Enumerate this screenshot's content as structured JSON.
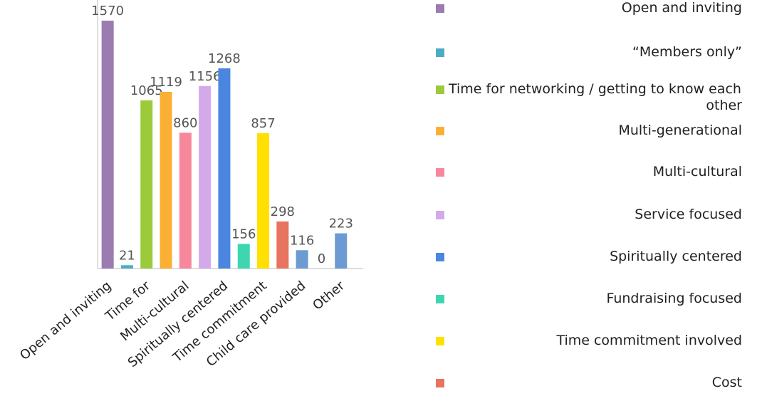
{
  "chart_data": {
    "type": "bar",
    "categories": [
      "Open and inviting",
      null,
      "Time for",
      null,
      "Multi-cultural",
      null,
      "Spiritually centered",
      null,
      "Time commitment",
      null,
      "Child care provided",
      null,
      "Other"
    ],
    "values": [
      1570,
      21,
      1065,
      1119,
      860,
      1156,
      1268,
      156,
      857,
      298,
      116,
      0,
      223
    ],
    "colors": [
      "#9b7bb0",
      "#4bacc6",
      "#9bcb3b",
      "#fbb034",
      "#f7879a",
      "#d4a9ea",
      "#4a86e0",
      "#3dd6b0",
      "#ffe000",
      "#e8735f",
      "#6b9bd2",
      "#a3c4e8",
      "#6b9bd2"
    ],
    "ylim": [
      0,
      1570
    ],
    "legend": [
      {
        "name": "Open and inviting",
        "color": "#9b7bb0"
      },
      {
        "name": "“Members only”",
        "color": "#4bacc6"
      },
      {
        "name": "Time for networking / getting to know each other",
        "color": "#9bcb3b"
      },
      {
        "name": "Multi-generational",
        "color": "#fbb034"
      },
      {
        "name": "Multi-cultural",
        "color": "#f7879a"
      },
      {
        "name": "Service focused",
        "color": "#d4a9ea"
      },
      {
        "name": "Spiritually centered",
        "color": "#4a86e0"
      },
      {
        "name": "Fundraising focused",
        "color": "#3dd6b0"
      },
      {
        "name": "Time commitment involved",
        "color": "#ffe000"
      },
      {
        "name": "Cost",
        "color": "#e8735f"
      }
    ]
  }
}
